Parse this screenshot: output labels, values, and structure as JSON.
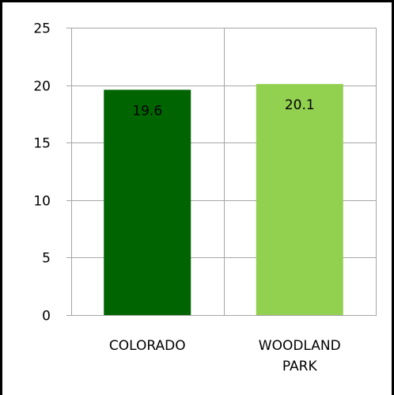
{
  "chart_data": {
    "type": "bar",
    "categories": [
      [
        "COLORADO"
      ],
      [
        "WOODLAND",
        "PARK"
      ]
    ],
    "values": [
      19.6,
      20.1
    ],
    "data_labels": [
      "19.6",
      "20.1"
    ],
    "bar_colors": [
      "#006400",
      "#92D050"
    ],
    "ylim": [
      0,
      25
    ],
    "yticks": [
      "0",
      "5",
      "10",
      "15",
      "20",
      "25"
    ],
    "grid": true,
    "legend": "none"
  }
}
